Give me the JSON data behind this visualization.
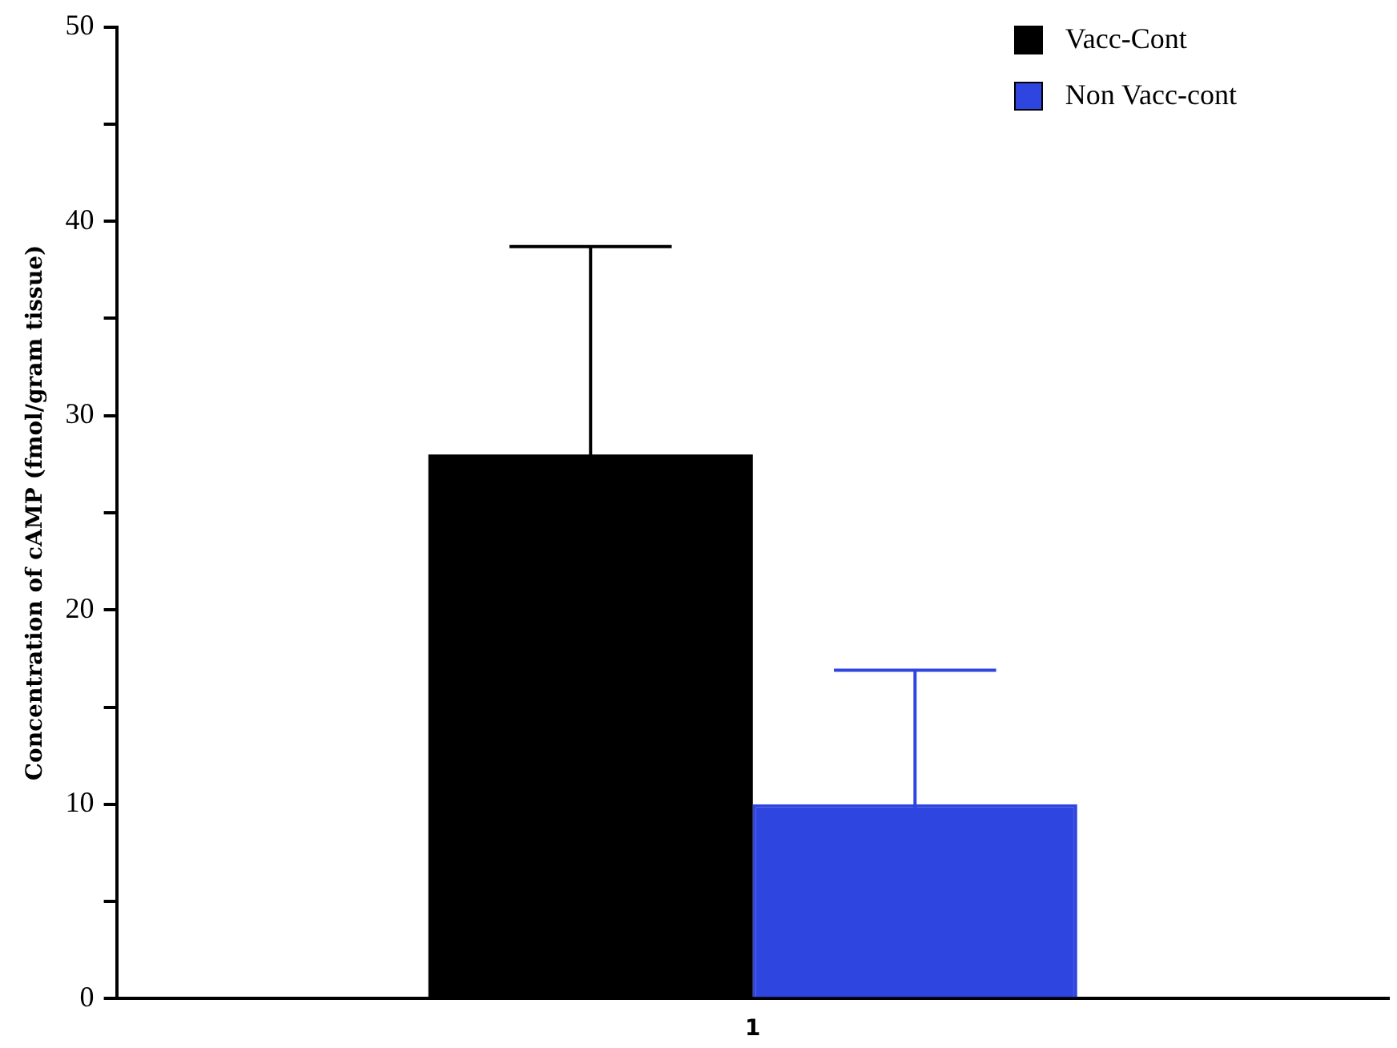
{
  "chart_data": {
    "type": "bar",
    "ylabel": "Concentration of cAMP (fmol/gram tissue)",
    "categories": [
      "1"
    ],
    "series": [
      {
        "name": "Vacc-Cont",
        "color": "#000000",
        "values": [
          28
        ],
        "errors": [
          10.7
        ]
      },
      {
        "name": "Non Vacc-cont",
        "color": "#2f45e0",
        "values": [
          10
        ],
        "errors": [
          6.9
        ]
      }
    ],
    "ylim": [
      0,
      50
    ],
    "yticks": [
      0,
      {
        "value": 5,
        "label": null
      },
      10,
      {
        "value": 15,
        "label": null
      },
      20,
      {
        "value": 25,
        "label": null
      },
      30,
      {
        "value": 35,
        "label": null
      },
      40,
      {
        "value": 45,
        "label": null
      },
      50
    ],
    "grid": false,
    "legend": "top right"
  }
}
